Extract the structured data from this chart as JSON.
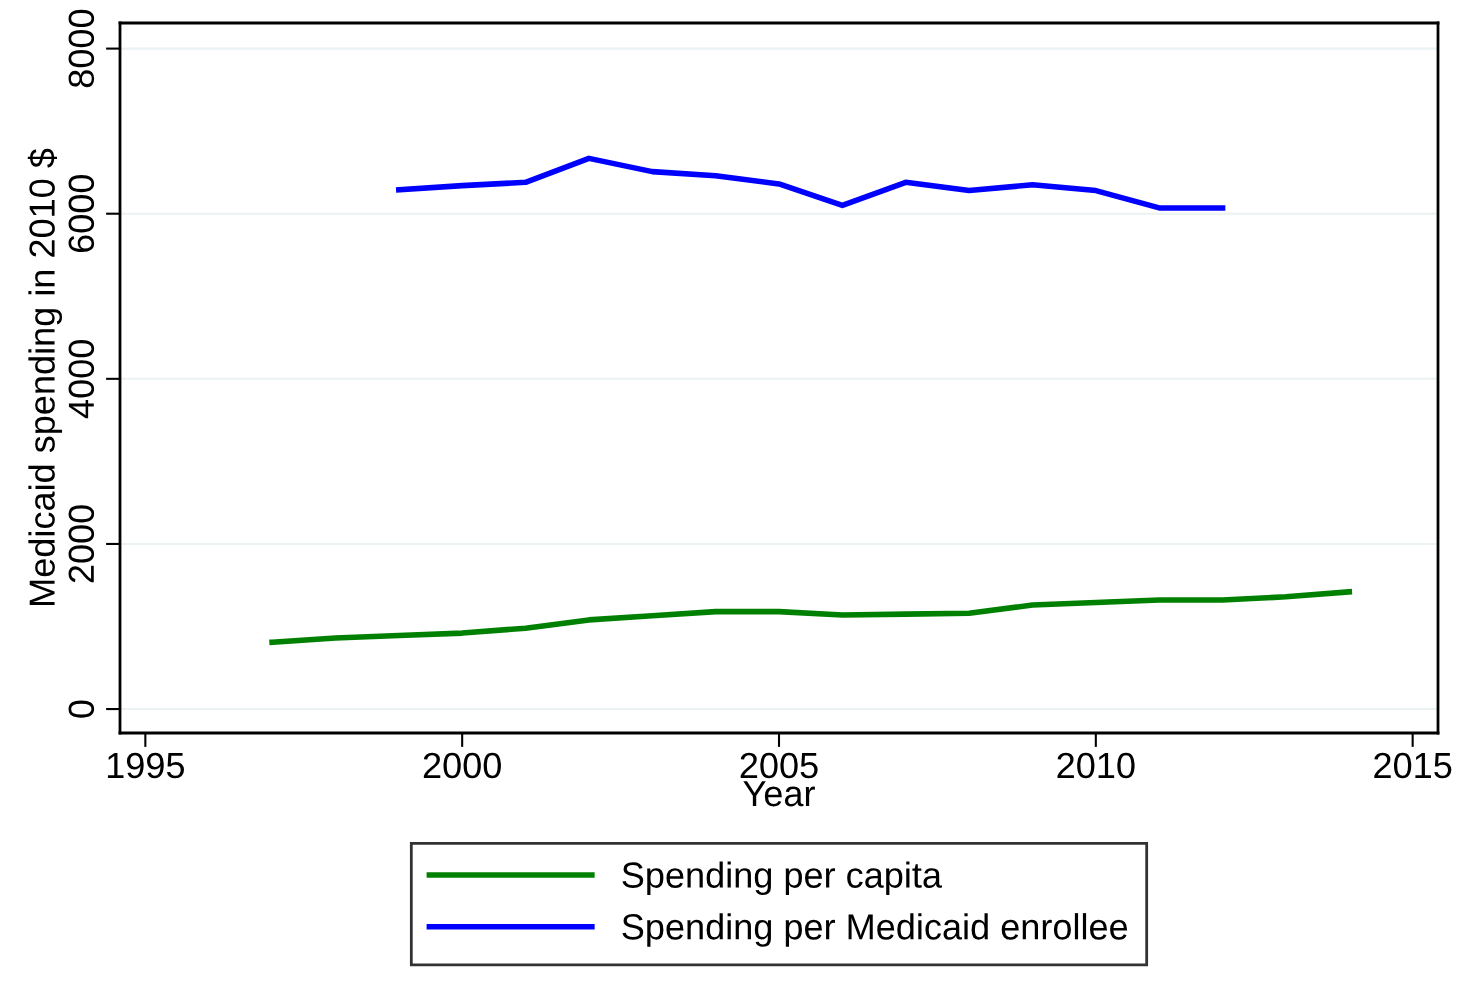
{
  "chart_data": {
    "type": "line",
    "xlabel": "Year",
    "ylabel": "Medicaid spending in 2010 $",
    "xlim": [
      1994.6,
      2015.4
    ],
    "xticks": [
      1995,
      2000,
      2005,
      2010,
      2015
    ],
    "ylim": [
      -290,
      8310
    ],
    "yticks": [
      0,
      2000,
      4000,
      6000,
      8000
    ],
    "grid": "y",
    "legend": "bottom",
    "marker": "none",
    "line_style": "solid",
    "series": [
      {
        "name": "Spending per capita",
        "color": "#008000",
        "x": [
          1997,
          1998,
          1999,
          2000,
          2001,
          2002,
          2003,
          2004,
          2005,
          2006,
          2007,
          2008,
          2009,
          2010,
          2011,
          2012,
          2013,
          2014
        ],
        "values": [
          810,
          860,
          890,
          920,
          980,
          1080,
          1130,
          1180,
          1180,
          1140,
          1150,
          1160,
          1260,
          1290,
          1320,
          1320,
          1360,
          1420
        ]
      },
      {
        "name": "Spending per Medicaid enrollee",
        "color": "#0000ff",
        "x": [
          1999,
          2000,
          2001,
          2002,
          2003,
          2004,
          2005,
          2006,
          2007,
          2008,
          2009,
          2010,
          2011,
          2012
        ],
        "values": [
          6290,
          6340,
          6380,
          6670,
          6510,
          6460,
          6360,
          6100,
          6380,
          6280,
          6350,
          6280,
          6070,
          6070
        ]
      }
    ]
  }
}
